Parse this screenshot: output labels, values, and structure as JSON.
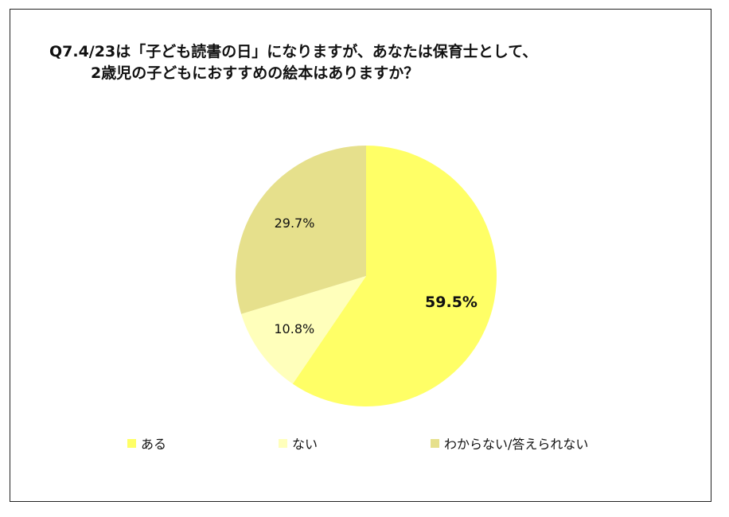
{
  "title": {
    "line1": "Q7.4/23は「子ども読書の日」になりますが、あなたは保育士として、",
    "line2": "2歳児の子どもにおすすめの絵本はありますか？"
  },
  "chart_data": {
    "type": "pie",
    "start_angle_deg": 0,
    "direction": "clockwise",
    "slices": [
      {
        "label": "ある",
        "value": 59.5,
        "display": "59.5%",
        "color": "#FFFF66",
        "bold": true
      },
      {
        "label": "ない",
        "value": 10.8,
        "display": "10.8%",
        "color": "#FFFFBB",
        "bold": false
      },
      {
        "label": "わからない/答えられない",
        "value": 29.7,
        "display": "29.7%",
        "color": "#E6E08C",
        "bold": false
      }
    ],
    "legend_position": "bottom"
  }
}
